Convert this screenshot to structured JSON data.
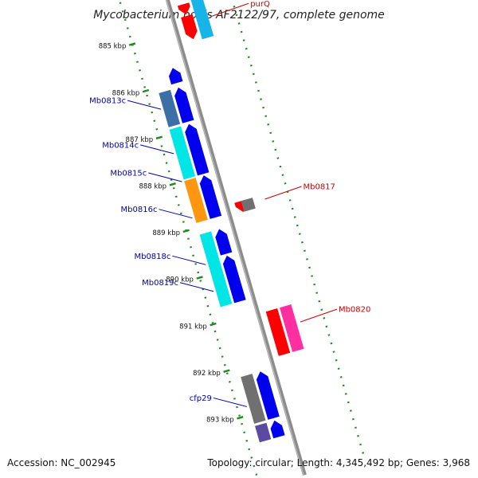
{
  "title": "Mycobacterium bovis AF2122/97, complete genome",
  "accession_label": "Accession: NC_002945",
  "topology_label": "Topology: circular; Length: 4,345,492 bp; Genes: 3,968",
  "colors": {
    "axis": "#8c8c8c",
    "tick": "#1e8a1e",
    "label_forward": "#cc0000",
    "label_reverse": "#0000aa"
  },
  "kbp_ticks": [
    {
      "label": "885 kbp",
      "kbp": 885
    },
    {
      "label": "886 kbp",
      "kbp": 886
    },
    {
      "label": "887 kbp",
      "kbp": 887
    },
    {
      "label": "888 kbp",
      "kbp": 888
    },
    {
      "label": "889 kbp",
      "kbp": 889
    },
    {
      "label": "890 kbp",
      "kbp": 890
    },
    {
      "label": "891 kbp",
      "kbp": 891
    },
    {
      "label": "892 kbp",
      "kbp": 892
    },
    {
      "label": "893 kbp",
      "kbp": 893
    }
  ],
  "features": [
    {
      "lane": "fwd_inner",
      "start": 884.2,
      "end": 884.35,
      "color": "#ff0000",
      "kind": "arrow"
    },
    {
      "lane": "fwd_inner",
      "start": 884.5,
      "end": 884.72,
      "color": "#ff0000",
      "kind": "arrow"
    },
    {
      "lane": "fwd_inner",
      "start": 884.75,
      "end": 885.25,
      "color": "#ff0000",
      "kind": "arrow"
    },
    {
      "lane": "fwd_outer",
      "start": 884.45,
      "end": 885.3,
      "color": "#17b4e8",
      "kind": "box"
    },
    {
      "lane": "fwd_inner",
      "start": 888.72,
      "end": 888.95,
      "color": "#ff0000",
      "kind": "arrow"
    },
    {
      "lane": "fwd_inner",
      "start": 888.72,
      "end": 888.95,
      "color": "#707070",
      "kind": "box",
      "offset": 0.45
    },
    {
      "lane": "fwd_inner",
      "start": 891.05,
      "end": 892.0,
      "color": "#ff0000",
      "kind": "box"
    },
    {
      "lane": "fwd_outer",
      "start": 891.05,
      "end": 892.0,
      "color": "#ff2fa0",
      "kind": "box"
    },
    {
      "lane": "rev_inner",
      "start": 885.7,
      "end": 886.02,
      "color": "#0000ee",
      "kind": "arrow"
    },
    {
      "lane": "rev_inner",
      "start": 886.12,
      "end": 886.85,
      "color": "#0000ee",
      "kind": "arrow"
    },
    {
      "lane": "rev_outer",
      "start": 886.12,
      "end": 886.85,
      "color": "#3d6fa6",
      "kind": "box"
    },
    {
      "lane": "rev_inner",
      "start": 886.9,
      "end": 887.97,
      "color": "#0000ee",
      "kind": "arrow"
    },
    {
      "lane": "rev_outer",
      "start": 886.9,
      "end": 887.97,
      "color": "#00e5e5",
      "kind": "box"
    },
    {
      "lane": "rev_inner",
      "start": 888.0,
      "end": 888.9,
      "color": "#0000ee",
      "kind": "arrow"
    },
    {
      "lane": "rev_outer",
      "start": 888.0,
      "end": 888.9,
      "color": "#ff9610",
      "kind": "box"
    },
    {
      "lane": "rev_inner",
      "start": 889.15,
      "end": 889.68,
      "color": "#0000ee",
      "kind": "arrow"
    },
    {
      "lane": "rev_inner",
      "start": 889.72,
      "end": 890.7,
      "color": "#0000ee",
      "kind": "arrow"
    },
    {
      "lane": "rev_outer",
      "start": 889.15,
      "end": 890.7,
      "color": "#00e5e5",
      "kind": "box"
    },
    {
      "lane": "rev_inner",
      "start": 892.2,
      "end": 893.2,
      "color": "#0000ee",
      "kind": "arrow"
    },
    {
      "lane": "rev_outer",
      "start": 892.2,
      "end": 893.2,
      "color": "#707070",
      "kind": "box"
    },
    {
      "lane": "rev_inner",
      "start": 893.25,
      "end": 893.6,
      "color": "#0000ee",
      "kind": "arrow"
    },
    {
      "lane": "rev_outer",
      "start": 893.25,
      "end": 893.6,
      "color": "#5a4aa0",
      "kind": "box"
    }
  ],
  "gene_labels": [
    {
      "text": "purQ",
      "strand": "forward",
      "kbp": 884.9
    },
    {
      "text": "Mb0817",
      "strand": "forward",
      "kbp": 888.82
    },
    {
      "text": "Mb0820",
      "strand": "forward",
      "kbp": 891.45
    },
    {
      "text": "Mb0813c",
      "strand": "reverse",
      "kbp": 886.45
    },
    {
      "text": "Mb0814c",
      "strand": "reverse",
      "kbp": 887.4
    },
    {
      "text": "Mb0815c",
      "strand": "reverse",
      "kbp": 888.0
    },
    {
      "text": "Mb0816c",
      "strand": "reverse",
      "kbp": 888.78
    },
    {
      "text": "Mb0818c",
      "strand": "reverse",
      "kbp": 889.78
    },
    {
      "text": "Mb0819c",
      "strand": "reverse",
      "kbp": 890.35
    },
    {
      "text": "cfp29",
      "strand": "reverse",
      "kbp": 892.82
    }
  ]
}
